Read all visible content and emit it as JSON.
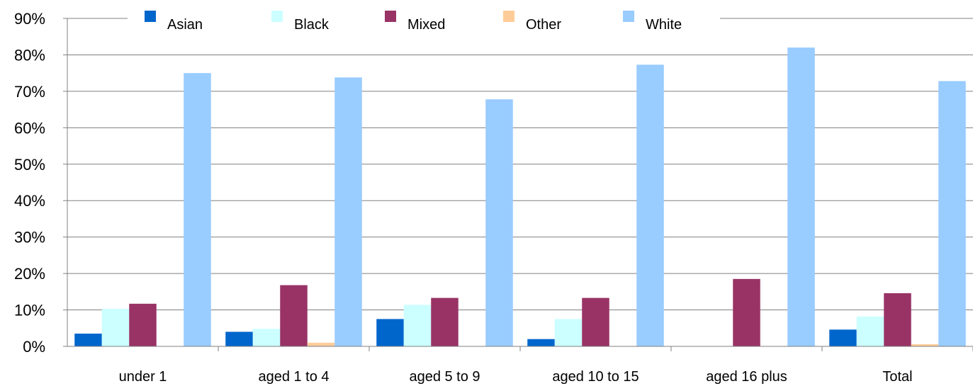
{
  "chart_data": {
    "type": "bar",
    "title": "",
    "xlabel": "",
    "ylabel": "",
    "ylim": [
      0,
      90
    ],
    "ytick_step": 10,
    "ytick_format": "percent",
    "grid": true,
    "legend_position": "top",
    "categories": [
      "under 1",
      "aged 1 to 4",
      "aged 5 to 9",
      "aged 10 to 15",
      "aged 16 plus",
      "Total"
    ],
    "series": [
      {
        "name": "Asian",
        "color": "#0066CC",
        "values": [
          3.5,
          4,
          7.5,
          2,
          0,
          4.6
        ]
      },
      {
        "name": "Black",
        "color": "#CCFFFF",
        "values": [
          10.3,
          4.8,
          11.4,
          7.5,
          0,
          8.2
        ]
      },
      {
        "name": "Mixed",
        "color": "#993366",
        "values": [
          11.7,
          16.8,
          13.3,
          13.3,
          18.5,
          14.6
        ]
      },
      {
        "name": "Other",
        "color": "#FFCC99",
        "values": [
          0,
          1,
          0,
          0,
          0,
          0.6
        ]
      },
      {
        "name": "White",
        "color": "#99CCFF",
        "values": [
          75,
          73.8,
          67.8,
          77.3,
          82,
          72.8
        ]
      }
    ]
  }
}
